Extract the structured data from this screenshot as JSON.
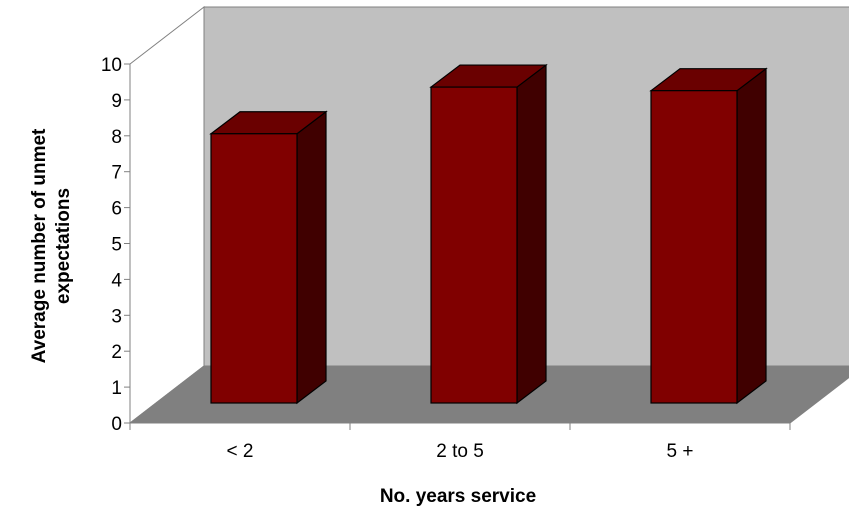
{
  "chart_data": {
    "type": "bar",
    "categories": [
      "< 2",
      "2 to 5",
      "5 +"
    ],
    "values": [
      7.5,
      8.8,
      8.7
    ],
    "title": "",
    "xlabel": "No. years service",
    "ylabel_lines": [
      "Average number of unmet",
      "expectations"
    ],
    "ylim": [
      0,
      10
    ],
    "yticks": [
      "0",
      "1",
      "2",
      "3",
      "4",
      "5",
      "6",
      "7",
      "8",
      "9",
      "10"
    ],
    "grid": false,
    "legend": "none",
    "colors": {
      "bar_front": "#800000",
      "bar_top": "#6a0000",
      "bar_side": "#400000",
      "back_wall": "#c0c0c0",
      "floor": "#808080",
      "side_wall": "#ffffff",
      "axis": "#808080"
    }
  }
}
